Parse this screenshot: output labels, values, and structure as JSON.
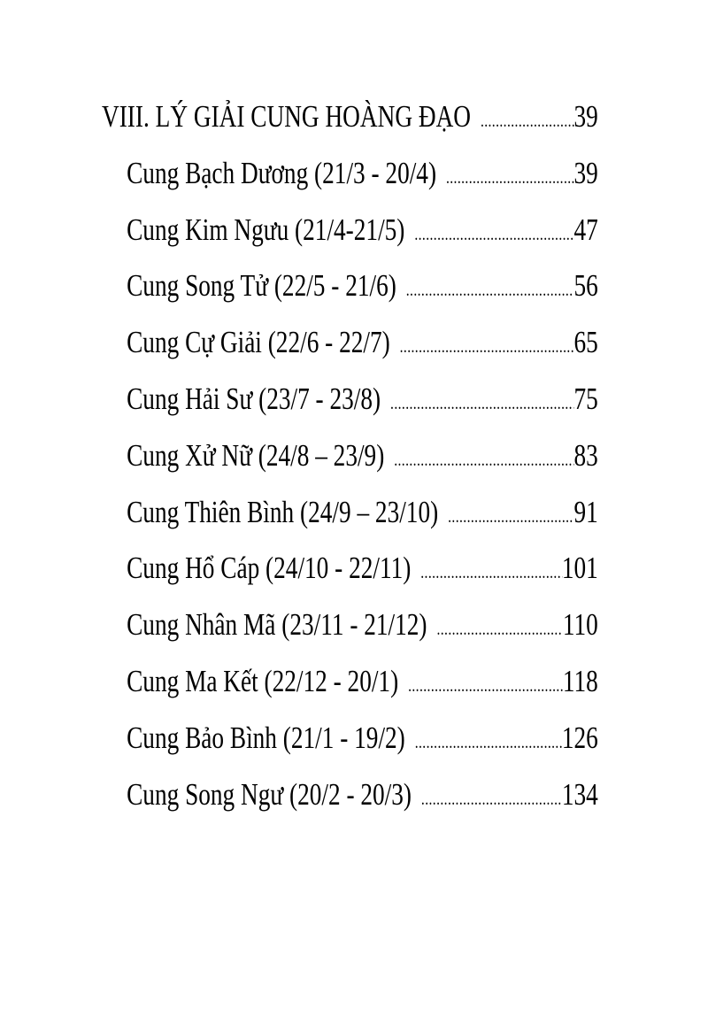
{
  "toc": {
    "section": {
      "label": "VIII. LÝ GIẢI CUNG HOÀNG ĐẠO",
      "page": "39"
    },
    "items": [
      {
        "label": "Cung Bạch Dương (21/3 - 20/4)",
        "page": "39"
      },
      {
        "label": "Cung Kim Ngưu (21/4-21/5)",
        "page": "47"
      },
      {
        "label": "Cung Song Tử (22/5 - 21/6)",
        "page": "56"
      },
      {
        "label": "Cung Cự Giải (22/6 - 22/7)",
        "page": "65"
      },
      {
        "label": "Cung Hải Sư (23/7 - 23/8)",
        "page": "75"
      },
      {
        "label": "Cung Xử Nữ (24/8 – 23/9)",
        "page": "83"
      },
      {
        "label": "Cung Thiên Bình (24/9 – 23/10)",
        "page": "91"
      },
      {
        "label": "Cung Hổ Cáp (24/10 - 22/11)",
        "page": "101"
      },
      {
        "label": "Cung Nhân Mã (23/11 - 21/12)",
        "page": "110"
      },
      {
        "label": "Cung Ma Kết (22/12 - 20/1)",
        "page": "118"
      },
      {
        "label": "Cung Bảo Bình (21/1 - 19/2)",
        "page": "126"
      },
      {
        "label": "Cung Song Ngư (20/2 - 20/3)",
        "page": "134"
      }
    ]
  }
}
